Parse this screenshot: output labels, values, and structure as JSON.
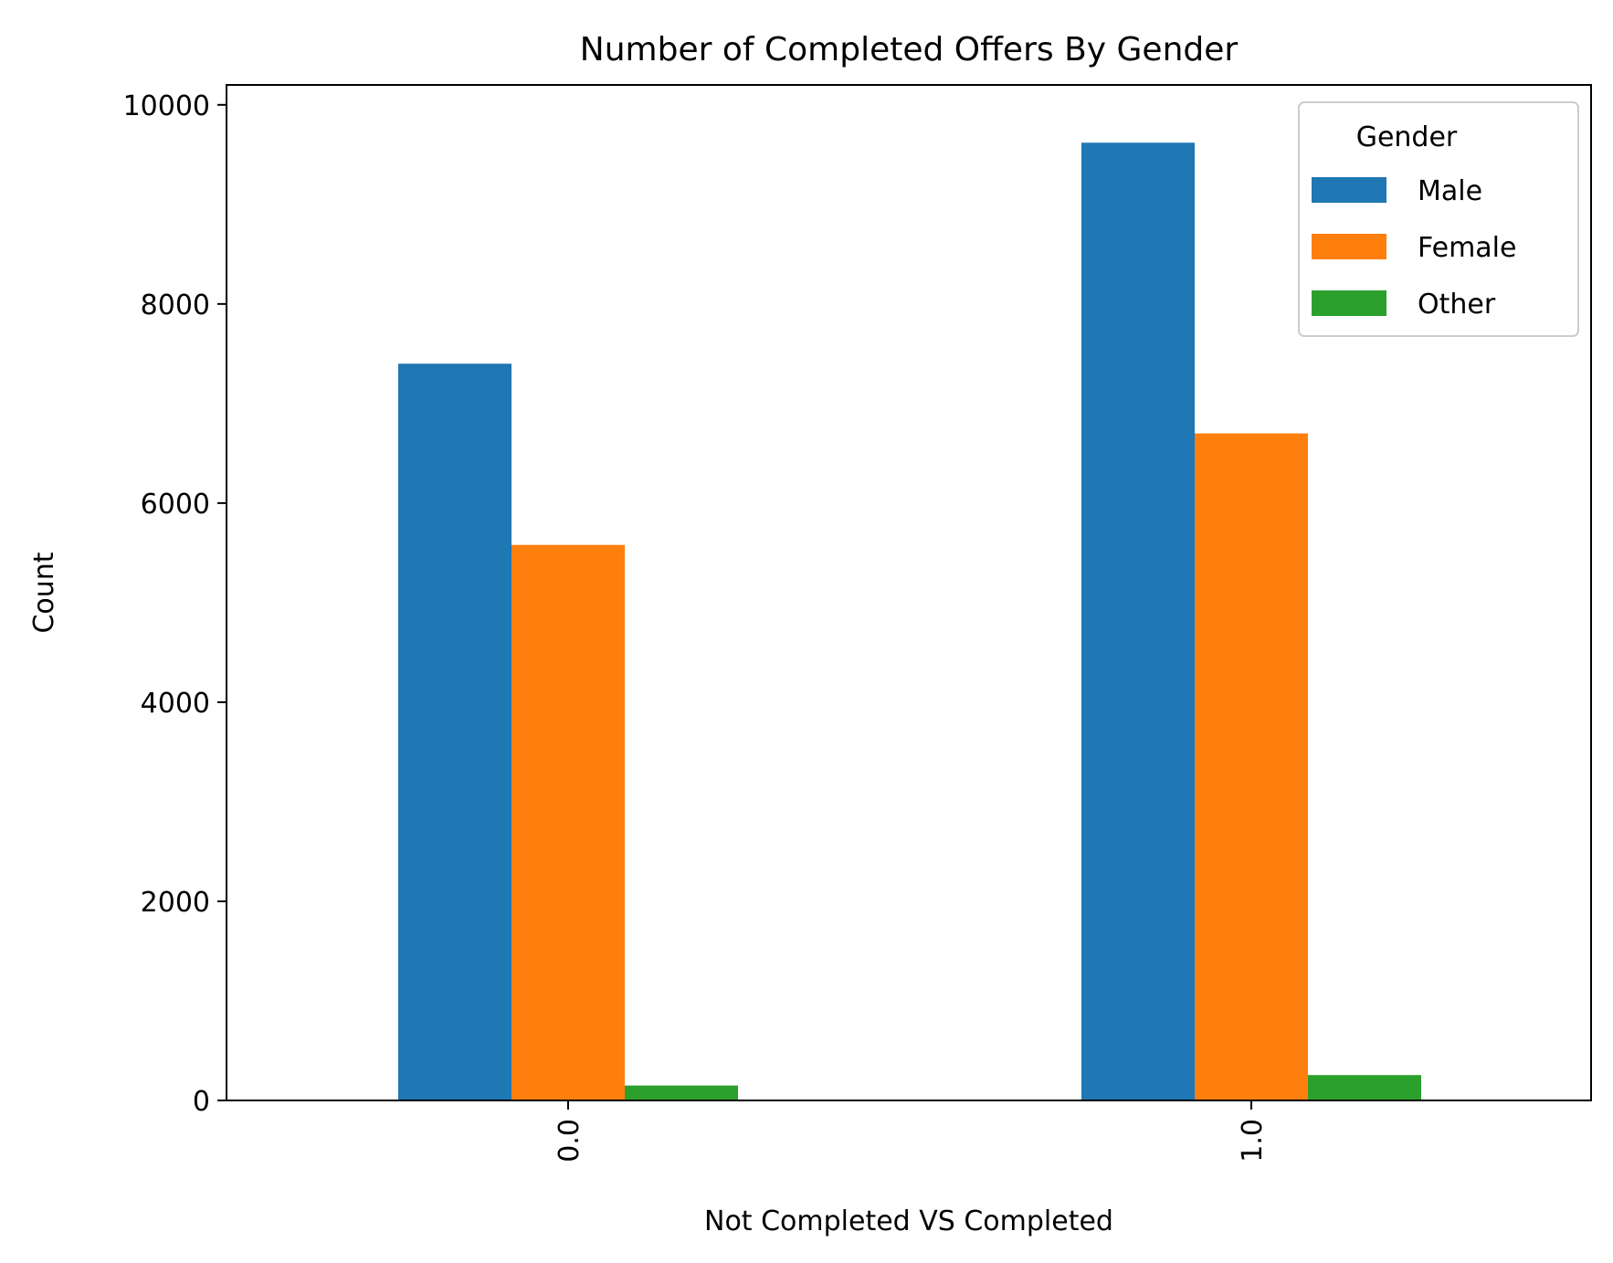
{
  "chart_data": {
    "type": "bar",
    "title": "Number of Completed Offers By Gender",
    "xlabel": "Not Completed VS Completed",
    "ylabel": "Count",
    "categories": [
      "0.0",
      "1.0"
    ],
    "ylim": [
      0,
      10200
    ],
    "yticks": [
      0,
      2000,
      4000,
      6000,
      8000,
      10000
    ],
    "grid": false,
    "legend": {
      "title": "Gender",
      "position": "top-right"
    },
    "series": [
      {
        "name": "Male",
        "values": [
          7400,
          9620
        ],
        "color": "#1f77b4"
      },
      {
        "name": "Female",
        "values": [
          5580,
          6700
        ],
        "color": "#ff7f0e"
      },
      {
        "name": "Other",
        "values": [
          150,
          255
        ],
        "color": "#2ca02c"
      }
    ]
  }
}
